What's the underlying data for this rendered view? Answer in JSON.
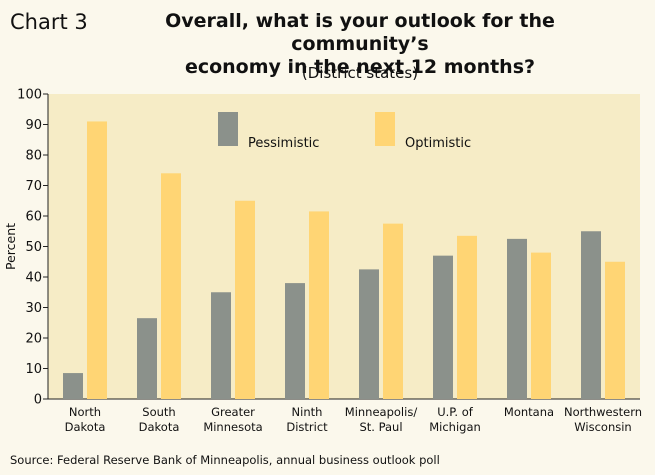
{
  "header": {
    "chart_number": "Chart 3",
    "title_line1": "Overall, what is your outlook for the community’s",
    "title_line2": "economy in the next 12 months?",
    "subtitle": "(District states)"
  },
  "footer": {
    "source": "Source: Federal Reserve Bank of Minneapolis, annual business outlook poll"
  },
  "colors": {
    "background": "#fbf8ec",
    "plot_background": "#f6ecc6",
    "pessimistic": "#8b918b",
    "optimistic": "#ffd574"
  },
  "chart_data": {
    "type": "bar",
    "title": "Overall, what is your outlook for the community’s economy in the next 12 months?",
    "subtitle": "(District states)",
    "xlabel": "",
    "ylabel": "Percent",
    "ylim": [
      0,
      100
    ],
    "yticks": [
      0,
      10,
      20,
      30,
      40,
      50,
      60,
      70,
      80,
      90,
      100
    ],
    "grid": false,
    "legend_position": "top-center",
    "categories": [
      [
        "North",
        "Dakota"
      ],
      [
        "South",
        "Dakota"
      ],
      [
        "Greater",
        "Minnesota"
      ],
      [
        "Ninth",
        "District"
      ],
      [
        "Minneapolis/",
        "St. Paul"
      ],
      [
        "U.P. of",
        "Michigan"
      ],
      [
        "Montana"
      ],
      [
        "Northwestern",
        "Wisconsin"
      ]
    ],
    "series": [
      {
        "name": "Pessimistic",
        "color": "#8b918b",
        "values": [
          8.5,
          26.5,
          35,
          38,
          42.5,
          47,
          52.5,
          55
        ]
      },
      {
        "name": "Optimistic",
        "color": "#ffd574",
        "values": [
          91,
          74,
          65,
          61.5,
          57.5,
          53.5,
          48,
          45
        ]
      }
    ]
  }
}
